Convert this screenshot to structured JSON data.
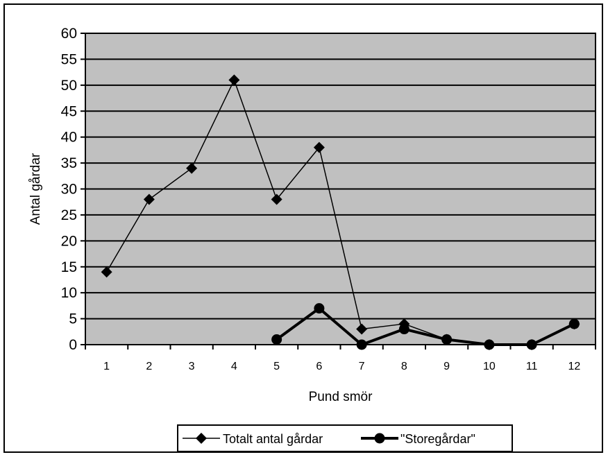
{
  "chart_data": {
    "type": "line",
    "title": "",
    "xlabel": "Pund smör",
    "ylabel": "Antal gårdar",
    "ylim": [
      0,
      60
    ],
    "ytick_step": 5,
    "grid": true,
    "background": "#c0c0c0",
    "legend_position": "bottom",
    "x": [
      1,
      2,
      3,
      4,
      5,
      6,
      7,
      8,
      9,
      10,
      11,
      12
    ],
    "series": [
      {
        "name": "Totalt antal gårdar",
        "values": [
          14,
          28,
          34,
          51,
          28,
          38,
          3,
          4,
          1,
          0,
          0,
          4
        ],
        "color": "#000000",
        "marker": "diamond",
        "line": "thin"
      },
      {
        "name": "\"Storegårdar\"",
        "values": [
          null,
          null,
          null,
          null,
          1,
          7,
          0,
          3,
          1,
          0,
          0,
          4
        ],
        "color": "#000000",
        "marker": "circle",
        "line": "thick"
      }
    ]
  }
}
